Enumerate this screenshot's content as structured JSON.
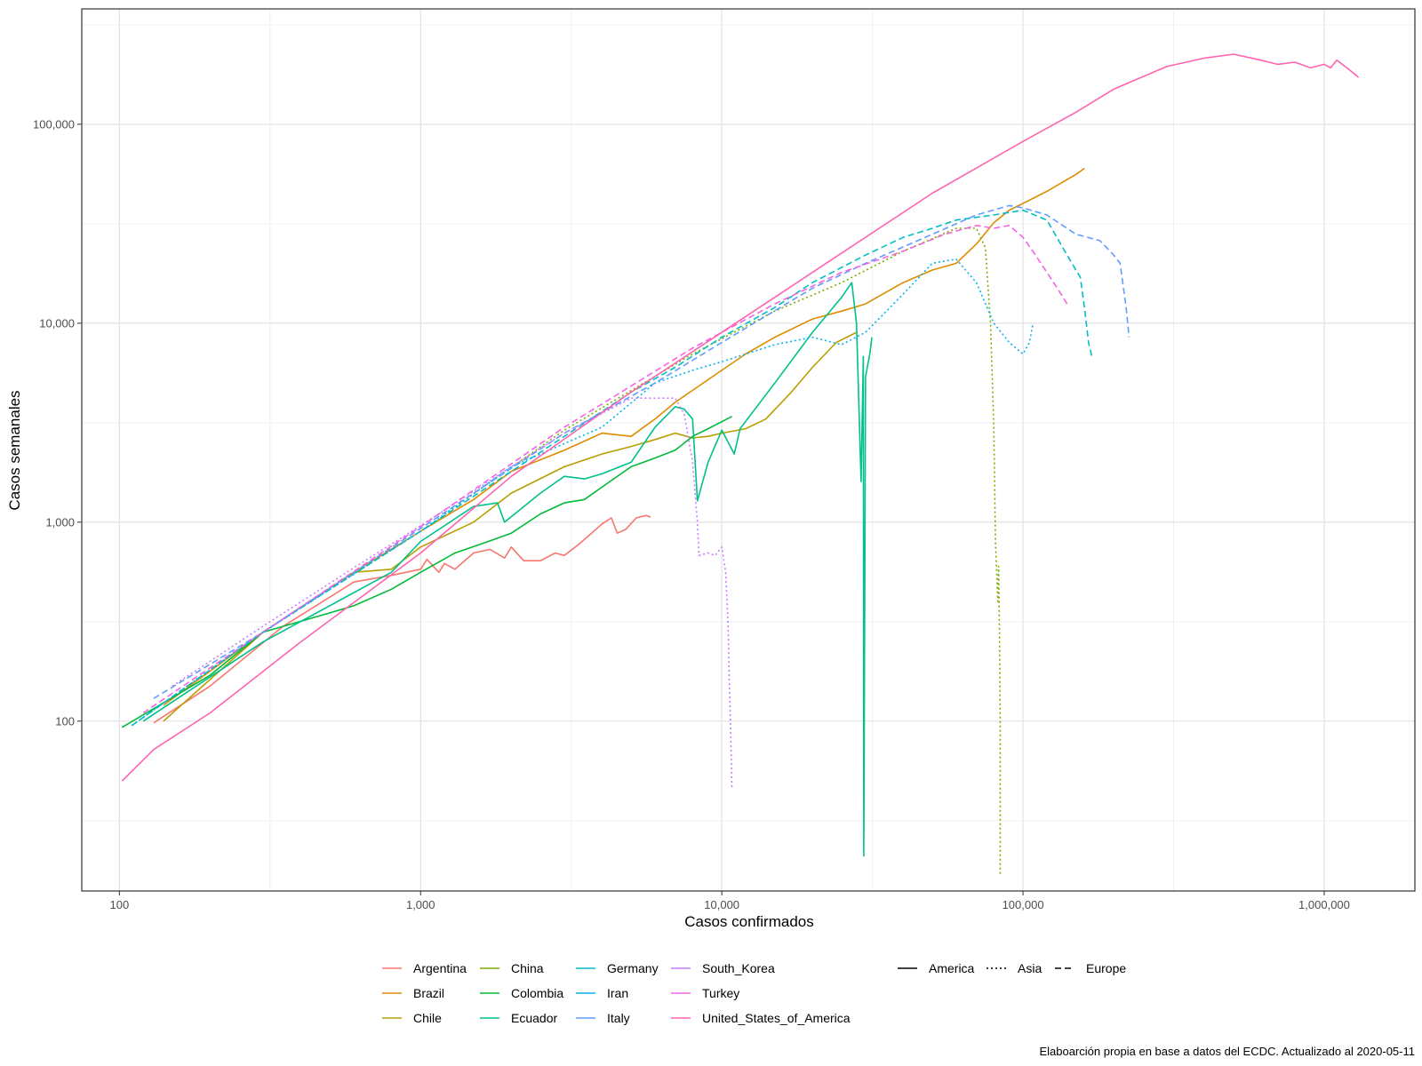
{
  "chart_data": {
    "type": "line",
    "title": "",
    "xlabel": "Casos confirmados",
    "ylabel": "Casos semanales",
    "caption": "Elaboarción propia en base a datos del ECDC.  Actualizado al  2020-05-11",
    "x_scale": "log10",
    "y_scale": "log10",
    "xlim": [
      75,
      2000000
    ],
    "ylim": [
      14,
      380000
    ],
    "x_ticks": [
      100,
      1000,
      10000,
      100000,
      1000000
    ],
    "x_tick_labels": [
      "100",
      "1,000",
      "10,000",
      "100,000",
      "1,000,000"
    ],
    "y_ticks": [
      100,
      1000,
      10000,
      100000
    ],
    "y_tick_labels": [
      "100",
      "1,000",
      "10,000",
      "100,000"
    ],
    "grid": true,
    "legend_position": "bottom",
    "linetype_legend": [
      {
        "name": "America",
        "dash": "solid"
      },
      {
        "name": "Asia",
        "dash": "dotted"
      },
      {
        "name": "Europe",
        "dash": "dashed"
      }
    ],
    "series": [
      {
        "name": "Argentina",
        "region": "America",
        "color": "#F8766D",
        "points": [
          [
            130,
            98
          ],
          [
            200,
            150
          ],
          [
            350,
            300
          ],
          [
            600,
            500
          ],
          [
            800,
            540
          ],
          [
            1000,
            580
          ],
          [
            1050,
            650
          ],
          [
            1150,
            560
          ],
          [
            1200,
            620
          ],
          [
            1300,
            580
          ],
          [
            1500,
            700
          ],
          [
            1700,
            730
          ],
          [
            1900,
            660
          ],
          [
            2000,
            750
          ],
          [
            2200,
            640
          ],
          [
            2500,
            640
          ],
          [
            2800,
            700
          ],
          [
            3000,
            680
          ],
          [
            3300,
            760
          ],
          [
            3600,
            850
          ],
          [
            4000,
            980
          ],
          [
            4300,
            1050
          ],
          [
            4500,
            880
          ],
          [
            4800,
            920
          ],
          [
            5200,
            1050
          ],
          [
            5600,
            1080
          ],
          [
            5800,
            1060
          ]
        ]
      },
      {
        "name": "Brazil",
        "region": "America",
        "color": "#DE8C00",
        "points": [
          [
            140,
            120
          ],
          [
            300,
            280
          ],
          [
            600,
            560
          ],
          [
            1000,
            900
          ],
          [
            1500,
            1300
          ],
          [
            2000,
            1800
          ],
          [
            3000,
            2300
          ],
          [
            4000,
            2800
          ],
          [
            5000,
            2700
          ],
          [
            6000,
            3300
          ],
          [
            7000,
            4000
          ],
          [
            9000,
            5200
          ],
          [
            12000,
            7000
          ],
          [
            15000,
            8500
          ],
          [
            20000,
            10500
          ],
          [
            25000,
            11500
          ],
          [
            30000,
            12500
          ],
          [
            40000,
            16000
          ],
          [
            50000,
            18500
          ],
          [
            60000,
            20000
          ],
          [
            70000,
            25000
          ],
          [
            80000,
            32000
          ],
          [
            90000,
            37000
          ],
          [
            100000,
            40000
          ],
          [
            120000,
            46000
          ],
          [
            150000,
            56000
          ],
          [
            160000,
            60000
          ]
        ]
      },
      {
        "name": "Chile",
        "region": "America",
        "color": "#B79F00",
        "points": [
          [
            140,
            100
          ],
          [
            300,
            280
          ],
          [
            600,
            560
          ],
          [
            800,
            580
          ],
          [
            1000,
            750
          ],
          [
            1500,
            1000
          ],
          [
            2000,
            1400
          ],
          [
            3000,
            1900
          ],
          [
            4000,
            2200
          ],
          [
            5000,
            2400
          ],
          [
            6000,
            2600
          ],
          [
            7000,
            2800
          ],
          [
            8000,
            2650
          ],
          [
            9000,
            2700
          ],
          [
            10000,
            2800
          ],
          [
            12000,
            2950
          ],
          [
            14000,
            3300
          ],
          [
            17000,
            4500
          ],
          [
            20000,
            6000
          ],
          [
            24000,
            8000
          ],
          [
            26000,
            8500
          ],
          [
            28000,
            9000
          ]
        ]
      },
      {
        "name": "China",
        "region": "Asia",
        "color": "#7CAE00",
        "points": [
          [
            110,
            95
          ],
          [
            300,
            280
          ],
          [
            1000,
            900
          ],
          [
            3000,
            2900
          ],
          [
            8000,
            7000
          ],
          [
            15000,
            11500
          ],
          [
            25000,
            16000
          ],
          [
            40000,
            23000
          ],
          [
            60000,
            30000
          ],
          [
            70000,
            30000
          ],
          [
            75000,
            24000
          ],
          [
            78000,
            10000
          ],
          [
            80000,
            3000
          ],
          [
            81000,
            800
          ],
          [
            82000,
            500
          ],
          [
            82500,
            400
          ],
          [
            83000,
            600
          ],
          [
            83500,
            300
          ],
          [
            84000,
            100
          ],
          [
            84000,
            17
          ]
        ]
      },
      {
        "name": "Colombia",
        "region": "America",
        "color": "#00BA38",
        "points": [
          [
            102,
            93
          ],
          [
            200,
            170
          ],
          [
            300,
            280
          ],
          [
            500,
            350
          ],
          [
            600,
            380
          ],
          [
            800,
            460
          ],
          [
            1000,
            560
          ],
          [
            1300,
            700
          ],
          [
            1600,
            780
          ],
          [
            2000,
            880
          ],
          [
            2500,
            1100
          ],
          [
            3000,
            1250
          ],
          [
            3500,
            1300
          ],
          [
            4000,
            1500
          ],
          [
            5000,
            1900
          ],
          [
            6000,
            2100
          ],
          [
            7000,
            2300
          ],
          [
            8000,
            2700
          ],
          [
            9000,
            2950
          ],
          [
            10000,
            3200
          ],
          [
            10800,
            3400
          ]
        ]
      },
      {
        "name": "Ecuador",
        "region": "America",
        "color": "#00C08B",
        "points": [
          [
            120,
            100
          ],
          [
            300,
            250
          ],
          [
            800,
            560
          ],
          [
            1000,
            800
          ],
          [
            1500,
            1200
          ],
          [
            1800,
            1250
          ],
          [
            1900,
            1000
          ],
          [
            2500,
            1400
          ],
          [
            3000,
            1700
          ],
          [
            3500,
            1650
          ],
          [
            4000,
            1750
          ],
          [
            5000,
            2000
          ],
          [
            6000,
            3000
          ],
          [
            7000,
            3800
          ],
          [
            7500,
            3700
          ],
          [
            8000,
            3300
          ],
          [
            8300,
            1280
          ],
          [
            9000,
            2000
          ],
          [
            10000,
            2900
          ],
          [
            11000,
            2200
          ],
          [
            11500,
            2950
          ],
          [
            15000,
            5000
          ],
          [
            20000,
            9000
          ],
          [
            25000,
            13500
          ],
          [
            27000,
            16000
          ],
          [
            28000,
            10000
          ],
          [
            29000,
            1600
          ],
          [
            29500,
            6800
          ],
          [
            29600,
            21
          ],
          [
            30000,
            5400
          ],
          [
            31000,
            7000
          ],
          [
            31500,
            8500
          ]
        ]
      },
      {
        "name": "Germany",
        "region": "Europe",
        "color": "#00BFC4",
        "points": [
          [
            110,
            95
          ],
          [
            300,
            280
          ],
          [
            1000,
            900
          ],
          [
            3000,
            2700
          ],
          [
            5000,
            4500
          ],
          [
            7000,
            6000
          ],
          [
            10000,
            8500
          ],
          [
            15000,
            12000
          ],
          [
            20000,
            16000
          ],
          [
            30000,
            22000
          ],
          [
            40000,
            27000
          ],
          [
            50000,
            30000
          ],
          [
            60000,
            33000
          ],
          [
            80000,
            35000
          ],
          [
            100000,
            37000
          ],
          [
            120000,
            33000
          ],
          [
            140000,
            22000
          ],
          [
            155000,
            17000
          ],
          [
            160000,
            12000
          ],
          [
            165000,
            8000
          ],
          [
            170000,
            6600
          ]
        ]
      },
      {
        "name": "Iran",
        "region": "Asia",
        "color": "#00B4EF",
        "points": [
          [
            110,
            95
          ],
          [
            300,
            280
          ],
          [
            1000,
            900
          ],
          [
            2000,
            1900
          ],
          [
            4000,
            3000
          ],
          [
            6000,
            5000
          ],
          [
            8000,
            5800
          ],
          [
            10000,
            6400
          ],
          [
            12000,
            7000
          ],
          [
            15000,
            7800
          ],
          [
            20000,
            8500
          ],
          [
            25000,
            7800
          ],
          [
            30000,
            9000
          ],
          [
            40000,
            14000
          ],
          [
            50000,
            20000
          ],
          [
            60000,
            21000
          ],
          [
            70000,
            16000
          ],
          [
            80000,
            10000
          ],
          [
            90000,
            8000
          ],
          [
            100000,
            7000
          ],
          [
            105000,
            8000
          ],
          [
            108000,
            10000
          ]
        ]
      },
      {
        "name": "Italy",
        "region": "Europe",
        "color": "#619CFF",
        "points": [
          [
            130,
            130
          ],
          [
            300,
            280
          ],
          [
            1000,
            930
          ],
          [
            3000,
            2800
          ],
          [
            6000,
            5000
          ],
          [
            10000,
            8000
          ],
          [
            20000,
            15000
          ],
          [
            30000,
            20000
          ],
          [
            50000,
            28000
          ],
          [
            70000,
            35000
          ],
          [
            90000,
            39000
          ],
          [
            100000,
            38000
          ],
          [
            120000,
            35000
          ],
          [
            150000,
            28000
          ],
          [
            180000,
            26000
          ],
          [
            200000,
            22000
          ],
          [
            210000,
            20000
          ],
          [
            220000,
            12000
          ],
          [
            225000,
            8500
          ]
        ]
      },
      {
        "name": "South_Korea",
        "region": "Asia",
        "color": "#C77CFF",
        "points": [
          [
            150,
            150
          ],
          [
            300,
            300
          ],
          [
            600,
            590
          ],
          [
            1000,
            960
          ],
          [
            2000,
            1900
          ],
          [
            3000,
            2800
          ],
          [
            5000,
            4200
          ],
          [
            7000,
            4200
          ],
          [
            7500,
            3500
          ],
          [
            8000,
            2000
          ],
          [
            8300,
            1000
          ],
          [
            8400,
            680
          ],
          [
            9000,
            700
          ],
          [
            9500,
            680
          ],
          [
            10000,
            750
          ],
          [
            10300,
            560
          ],
          [
            10500,
            300
          ],
          [
            10600,
            150
          ],
          [
            10700,
            90
          ],
          [
            10800,
            46
          ]
        ]
      },
      {
        "name": "Turkey",
        "region": "Europe",
        "color": "#F564E3",
        "points": [
          [
            120,
            110
          ],
          [
            300,
            280
          ],
          [
            1000,
            950
          ],
          [
            3000,
            3000
          ],
          [
            8000,
            7500
          ],
          [
            15000,
            12500
          ],
          [
            25000,
            18000
          ],
          [
            40000,
            23000
          ],
          [
            55000,
            28000
          ],
          [
            70000,
            31000
          ],
          [
            80000,
            30000
          ],
          [
            90000,
            31000
          ],
          [
            100000,
            27000
          ],
          [
            110000,
            22000
          ],
          [
            120000,
            18000
          ],
          [
            130000,
            15000
          ],
          [
            140000,
            12500
          ]
        ]
      },
      {
        "name": "United_States_of_America",
        "region": "America",
        "color": "#FF64B0",
        "points": [
          [
            102,
            50
          ],
          [
            130,
            72
          ],
          [
            200,
            110
          ],
          [
            400,
            250
          ],
          [
            1000,
            700
          ],
          [
            2000,
            1700
          ],
          [
            5000,
            4500
          ],
          [
            10000,
            9000
          ],
          [
            20000,
            18000
          ],
          [
            50000,
            45000
          ],
          [
            100000,
            82000
          ],
          [
            150000,
            115000
          ],
          [
            200000,
            150000
          ],
          [
            300000,
            195000
          ],
          [
            400000,
            215000
          ],
          [
            500000,
            225000
          ],
          [
            600000,
            212000
          ],
          [
            700000,
            200000
          ],
          [
            800000,
            205000
          ],
          [
            900000,
            192000
          ],
          [
            1000000,
            200000
          ],
          [
            1050000,
            192000
          ],
          [
            1100000,
            210000
          ],
          [
            1200000,
            190000
          ],
          [
            1300000,
            172000
          ]
        ]
      }
    ]
  }
}
